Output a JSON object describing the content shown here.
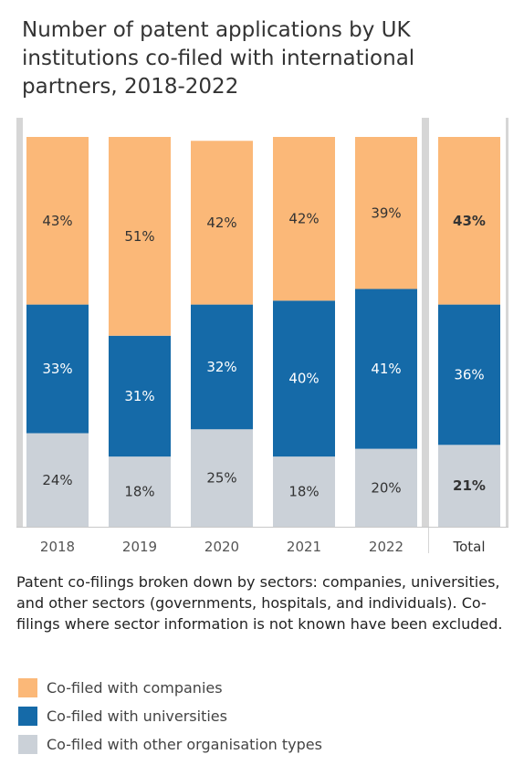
{
  "title": "Number of patent applications by UK institutions co-filed with international partners, 2018-2022",
  "note": "Patent co-filings broken down by sectors: companies, universities, and other sectors (governments, hospitals, and individuals). Co-filings where sector information is not known have been excluded.",
  "colors": {
    "companies": "#fbb878",
    "universities": "#156aa8",
    "other": "#cbd1d8",
    "frame": "#d6d6d6"
  },
  "legend": [
    {
      "label": "Co-filed with companies",
      "color_key": "companies"
    },
    {
      "label": "Co-filed with universities",
      "color_key": "universities"
    },
    {
      "label": "Co-filed with other organisation types",
      "color_key": "other"
    }
  ],
  "chart_data": {
    "type": "bar",
    "stacked": "100%",
    "categories": [
      "2018",
      "2019",
      "2020",
      "2021",
      "2022",
      "Total"
    ],
    "series": [
      {
        "name": "Co-filed with other organisation types",
        "color_key": "other",
        "values": [
          24,
          18,
          25,
          18,
          20,
          21
        ],
        "labels": [
          "24%",
          "18%",
          "25%",
          "18%",
          "20%",
          "21%"
        ]
      },
      {
        "name": "Co-filed with universities",
        "color_key": "universities",
        "values": [
          33,
          31,
          32,
          40,
          41,
          36
        ],
        "labels": [
          "33%",
          "31%",
          "32%",
          "40%",
          "41%",
          "36%"
        ]
      },
      {
        "name": "Co-filed with companies",
        "color_key": "companies",
        "values": [
          43,
          51,
          42,
          42,
          39,
          43
        ],
        "labels": [
          "43%",
          "51%",
          "42%",
          "42%",
          "39%",
          "43%"
        ]
      }
    ],
    "ylim": [
      0,
      100
    ],
    "xlabel": "",
    "ylabel": "",
    "grid": false,
    "legend_position": "bottom"
  }
}
